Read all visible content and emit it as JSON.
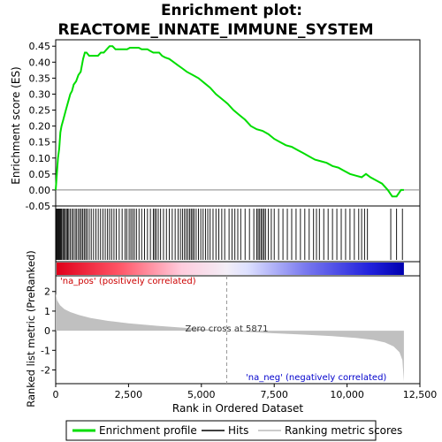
{
  "chart_data": {
    "type": "line",
    "title_line1": "Enrichment plot:",
    "title_line2": "REACTOME_INNATE_IMMUNE_SYSTEM",
    "top_panel": {
      "ylabel": "Enrichment score (ES)",
      "ylim": [
        -0.05,
        0.47
      ],
      "yticks": [
        -0.05,
        0.0,
        0.05,
        0.1,
        0.15,
        0.2,
        0.25,
        0.3,
        0.35,
        0.4,
        0.45
      ],
      "ytick_labels": [
        "-0.05",
        "0.00",
        "0.05",
        "0.10",
        "0.15",
        "0.20",
        "0.25",
        "0.30",
        "0.35",
        "0.40",
        "0.45"
      ],
      "series": [
        {
          "name": "Enrichment profile",
          "color": "#00dd00",
          "x": [
            0,
            40,
            80,
            120,
            160,
            200,
            260,
            320,
            380,
            440,
            500,
            560,
            620,
            700,
            780,
            860,
            940,
            1000,
            1060,
            1150,
            1250,
            1350,
            1450,
            1550,
            1650,
            1750,
            1850,
            1950,
            2050,
            2150,
            2250,
            2350,
            2450,
            2550,
            2650,
            2750,
            2850,
            2950,
            3050,
            3150,
            3250,
            3350,
            3450,
            3550,
            3650,
            3750,
            3900,
            4050,
            4200,
            4350,
            4500,
            4700,
            4900,
            5100,
            5300,
            5500,
            5700,
            5900,
            6100,
            6300,
            6500,
            6700,
            6900,
            7100,
            7300,
            7500,
            7700,
            7900,
            8100,
            8300,
            8500,
            8700,
            8900,
            9100,
            9300,
            9500,
            9700,
            9900,
            10100,
            10300,
            10500,
            10650,
            10800,
            11000,
            11200,
            11400,
            11550,
            11700,
            11850,
            11950
          ],
          "y": [
            0.0,
            0.05,
            0.1,
            0.13,
            0.18,
            0.2,
            0.22,
            0.24,
            0.26,
            0.28,
            0.3,
            0.31,
            0.33,
            0.34,
            0.36,
            0.37,
            0.41,
            0.43,
            0.43,
            0.42,
            0.42,
            0.42,
            0.42,
            0.43,
            0.43,
            0.44,
            0.45,
            0.45,
            0.44,
            0.44,
            0.44,
            0.44,
            0.44,
            0.445,
            0.445,
            0.445,
            0.445,
            0.44,
            0.44,
            0.44,
            0.435,
            0.43,
            0.43,
            0.43,
            0.42,
            0.415,
            0.41,
            0.4,
            0.39,
            0.38,
            0.37,
            0.36,
            0.35,
            0.335,
            0.32,
            0.3,
            0.285,
            0.27,
            0.25,
            0.235,
            0.22,
            0.2,
            0.19,
            0.185,
            0.175,
            0.16,
            0.15,
            0.14,
            0.135,
            0.125,
            0.115,
            0.105,
            0.095,
            0.09,
            0.085,
            0.075,
            0.07,
            0.06,
            0.05,
            0.045,
            0.04,
            0.05,
            0.04,
            0.03,
            0.02,
            0.0,
            -0.02,
            -0.02,
            0.0,
            0.0
          ]
        }
      ]
    },
    "hits": {
      "name": "Hits",
      "positions": [
        30,
        60,
        90,
        120,
        150,
        180,
        210,
        250,
        290,
        330,
        370,
        410,
        450,
        500,
        560,
        610,
        670,
        720,
        780,
        830,
        880,
        930,
        980,
        1030,
        1080,
        1150,
        1220,
        1300,
        1380,
        1460,
        1540,
        1620,
        1700,
        1780,
        1850,
        1920,
        2000,
        2080,
        2180,
        2280,
        2380,
        2440,
        2520,
        2580,
        2640,
        2700,
        2770,
        2860,
        2950,
        3050,
        3150,
        3250,
        3350,
        3400,
        3450,
        3520,
        3600,
        3700,
        3800,
        3900,
        4000,
        4100,
        4200,
        4280,
        4350,
        4420,
        4480,
        4540,
        4600,
        4650,
        4700,
        4750,
        4820,
        4900,
        4980,
        5060,
        5140,
        5220,
        5300,
        5400,
        5500,
        5600,
        5700,
        5800,
        5950,
        6050,
        6150,
        6250,
        6350,
        6500,
        6650,
        6800,
        6900,
        6950,
        7000,
        7050,
        7100,
        7150,
        7200,
        7300,
        7400,
        7500,
        7650,
        7800,
        7950,
        8100,
        8250,
        8400,
        8550,
        8700,
        8850,
        8950,
        9050,
        9200,
        9350,
        9500,
        9650,
        9800,
        9950,
        10100,
        10250,
        10400,
        10500,
        10600,
        10700,
        11500,
        11700,
        11900
      ]
    },
    "bottom_panel": {
      "xlabel": "Rank in Ordered Dataset",
      "ylabel": "Ranked list metric (PreRanked)",
      "xlim": [
        0,
        12500
      ],
      "xticks": [
        0,
        2500,
        5000,
        7500,
        10000,
        12500
      ],
      "xtick_labels": [
        "0",
        "2,500",
        "5,000",
        "7,500",
        "10,000",
        "12,500"
      ],
      "ylim": [
        -2.7,
        2.8
      ],
      "yticks": [
        -2,
        -1,
        0,
        1,
        2
      ],
      "ytick_labels": [
        "-2",
        "-1",
        "0",
        "1",
        "2"
      ],
      "zero_cross": 5871,
      "zero_cross_label": "Zero cross at 5871",
      "pos_label": "'na_pos' (positively correlated)",
      "neg_label": "'na_neg' (negatively correlated)",
      "n_genes": 11950,
      "metric_points": [
        [
          0,
          1.9
        ],
        [
          50,
          1.55
        ],
        [
          150,
          1.3
        ],
        [
          300,
          1.1
        ],
        [
          500,
          0.95
        ],
        [
          800,
          0.8
        ],
        [
          1200,
          0.65
        ],
        [
          1800,
          0.5
        ],
        [
          2500,
          0.38
        ],
        [
          3500,
          0.25
        ],
        [
          4500,
          0.14
        ],
        [
          5400,
          0.05
        ],
        [
          5871,
          0.0
        ],
        [
          6500,
          -0.06
        ],
        [
          7500,
          -0.13
        ],
        [
          8500,
          -0.2
        ],
        [
          9500,
          -0.28
        ],
        [
          10300,
          -0.37
        ],
        [
          10900,
          -0.47
        ],
        [
          11300,
          -0.6
        ],
        [
          11600,
          -0.8
        ],
        [
          11800,
          -1.1
        ],
        [
          11900,
          -1.5
        ],
        [
          11950,
          -2.6
        ]
      ],
      "series_name": "Ranking metric scores"
    },
    "legend": [
      {
        "label": "Enrichment profile",
        "color": "#00dd00"
      },
      {
        "label": "Hits",
        "color": "#000000"
      },
      {
        "label": "Ranking metric scores",
        "color": "#bbbbbb"
      }
    ]
  }
}
